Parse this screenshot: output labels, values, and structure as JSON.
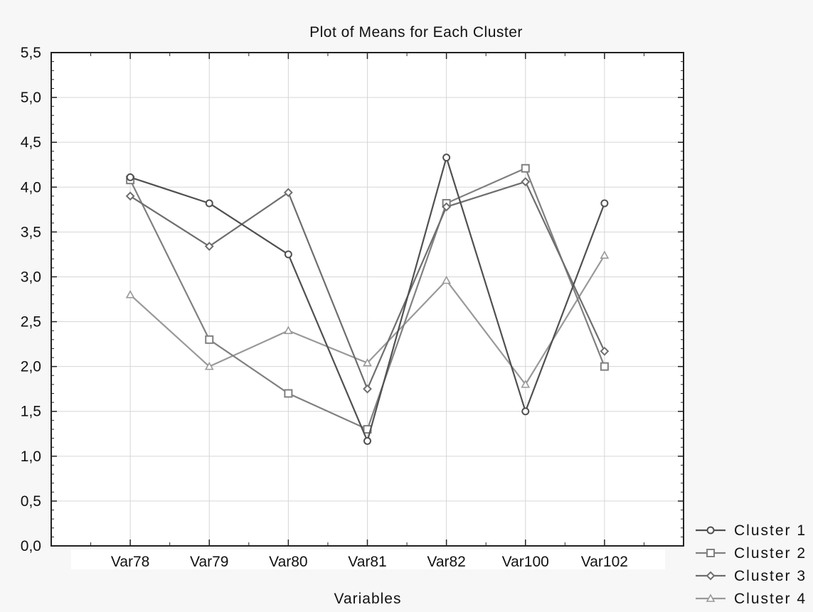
{
  "chart_data": {
    "type": "line",
    "title": "Plot of Means for Each Cluster",
    "xlabel": "Variables",
    "ylabel": "",
    "categories": [
      "Var78",
      "Var79",
      "Var80",
      "Var81",
      "Var82",
      "Var100",
      "Var102"
    ],
    "ylim": [
      0,
      5.5
    ],
    "yticks": [
      "0,0",
      "0,5",
      "1,0",
      "1,5",
      "2,0",
      "2,5",
      "3,0",
      "3,5",
      "4,0",
      "4,5",
      "5,0",
      "5,5"
    ],
    "grid": true,
    "legend": "bottom-right",
    "series": [
      {
        "name": "Cluster 1",
        "marker": "circle",
        "color": "#505050",
        "values": [
          4.11,
          3.82,
          3.25,
          1.17,
          4.33,
          1.5,
          3.82
        ]
      },
      {
        "name": "Cluster 2",
        "marker": "square",
        "color": "#808080",
        "values": [
          4.08,
          2.3,
          1.7,
          1.3,
          3.82,
          4.21,
          2.0
        ]
      },
      {
        "name": "Cluster 3",
        "marker": "diamond",
        "color": "#6e6e6e",
        "values": [
          3.9,
          3.34,
          3.94,
          1.75,
          3.78,
          4.06,
          2.17
        ]
      },
      {
        "name": "Cluster 4",
        "marker": "triangle",
        "color": "#999999",
        "values": [
          2.8,
          2.0,
          2.4,
          2.04,
          2.96,
          1.8,
          3.24
        ]
      }
    ]
  }
}
